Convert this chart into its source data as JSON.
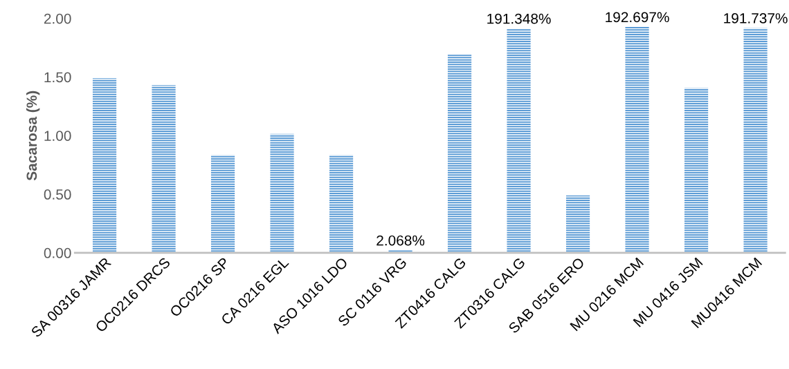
{
  "chart_data": {
    "type": "bar",
    "ylabel": "Sacarosa (%)",
    "categories": [
      "SA 00316 JAMR",
      "OC0216 DRCS",
      "OC0216 SP",
      "CA 0216 EGL",
      "ASO 1016 LDO",
      "SC 0116 VRG",
      "ZT0416 CALG",
      "ZT0316 CALG",
      "SAB 0516 ERO",
      "MU 0216 MCM",
      "MU 0416 JSM",
      "MU0416 MCM"
    ],
    "values": [
      1.49,
      1.43,
      0.835,
      1.015,
      0.835,
      0.02068,
      1.69,
      1.91348,
      0.49,
      1.92697,
      1.405,
      1.91737
    ],
    "value_labels": [
      null,
      null,
      null,
      null,
      null,
      "2.068%",
      null,
      "191.348%",
      null,
      "192.697%",
      null,
      "191.737%"
    ],
    "color": "#5b9bd5",
    "ylim": [
      0,
      2.0
    ],
    "yticks": [
      {
        "value": 0,
        "label": "0.00"
      },
      {
        "value": 0.5,
        "label": "0.50"
      },
      {
        "value": 1.0,
        "label": "1.00"
      },
      {
        "value": 1.5,
        "label": "1.50"
      },
      {
        "value": 2.0,
        "label": "2.00"
      }
    ],
    "grid": false
  }
}
